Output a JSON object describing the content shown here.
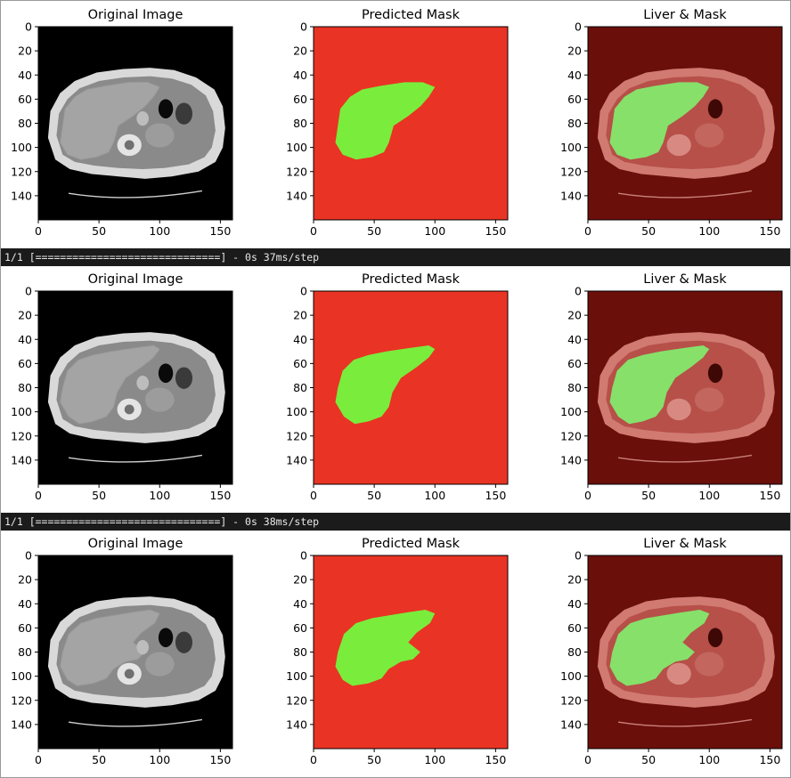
{
  "colors": {
    "mask_background": "#e93324",
    "mask_liver": "#7aec3c",
    "overlay_background": "#6b0f0b",
    "overlay_liver": "#86e06a",
    "ct_background": "#000000",
    "log_bar": "#1b1b1b"
  },
  "logs": [
    "1/1 [==============================] - 0s 37ms/step",
    "1/1 [==============================] - 0s 38ms/step"
  ],
  "rows": [
    {
      "panels": [
        {
          "title": "Original Image",
          "kind": "ct"
        },
        {
          "title": "Predicted Mask",
          "kind": "mask"
        },
        {
          "title": "Liver & Mask",
          "kind": "overlay"
        }
      ],
      "liver_outline": [
        [
          20,
          82
        ],
        [
          22,
          68
        ],
        [
          30,
          58
        ],
        [
          40,
          52
        ],
        [
          55,
          49
        ],
        [
          75,
          46
        ],
        [
          90,
          46
        ],
        [
          100,
          50
        ],
        [
          95,
          58
        ],
        [
          88,
          66
        ],
        [
          78,
          74
        ],
        [
          66,
          82
        ],
        [
          62,
          96
        ],
        [
          58,
          104
        ],
        [
          48,
          108
        ],
        [
          35,
          110
        ],
        [
          24,
          106
        ],
        [
          18,
          96
        ]
      ]
    },
    {
      "panels": [
        {
          "title": "Original Image",
          "kind": "ct"
        },
        {
          "title": "Predicted Mask",
          "kind": "mask"
        },
        {
          "title": "Liver & Mask",
          "kind": "overlay"
        }
      ],
      "liver_outline": [
        [
          20,
          80
        ],
        [
          24,
          66
        ],
        [
          33,
          57
        ],
        [
          45,
          53
        ],
        [
          60,
          50
        ],
        [
          80,
          47
        ],
        [
          95,
          45
        ],
        [
          100,
          48
        ],
        [
          95,
          55
        ],
        [
          85,
          63
        ],
        [
          72,
          72
        ],
        [
          65,
          84
        ],
        [
          62,
          96
        ],
        [
          56,
          104
        ],
        [
          45,
          108
        ],
        [
          34,
          110
        ],
        [
          25,
          104
        ],
        [
          18,
          92
        ]
      ]
    },
    {
      "panels": [
        {
          "title": "Original Image",
          "kind": "ct"
        },
        {
          "title": "Predicted Mask",
          "kind": "mask"
        },
        {
          "title": "Liver & Mask",
          "kind": "overlay"
        }
      ],
      "liver_outline": [
        [
          20,
          80
        ],
        [
          25,
          65
        ],
        [
          35,
          56
        ],
        [
          48,
          52
        ],
        [
          60,
          50
        ],
        [
          78,
          47
        ],
        [
          92,
          45
        ],
        [
          100,
          48
        ],
        [
          96,
          56
        ],
        [
          85,
          64
        ],
        [
          78,
          72
        ],
        [
          88,
          80
        ],
        [
          82,
          86
        ],
        [
          72,
          88
        ],
        [
          62,
          94
        ],
        [
          56,
          102
        ],
        [
          45,
          106
        ],
        [
          32,
          108
        ],
        [
          24,
          103
        ],
        [
          18,
          92
        ]
      ]
    }
  ],
  "axes": {
    "xticks": [
      0,
      50,
      100,
      150
    ],
    "yticks": [
      0,
      20,
      40,
      60,
      80,
      100,
      120,
      140
    ],
    "xlim": [
      0,
      160
    ],
    "ylim": [
      160,
      0
    ]
  }
}
